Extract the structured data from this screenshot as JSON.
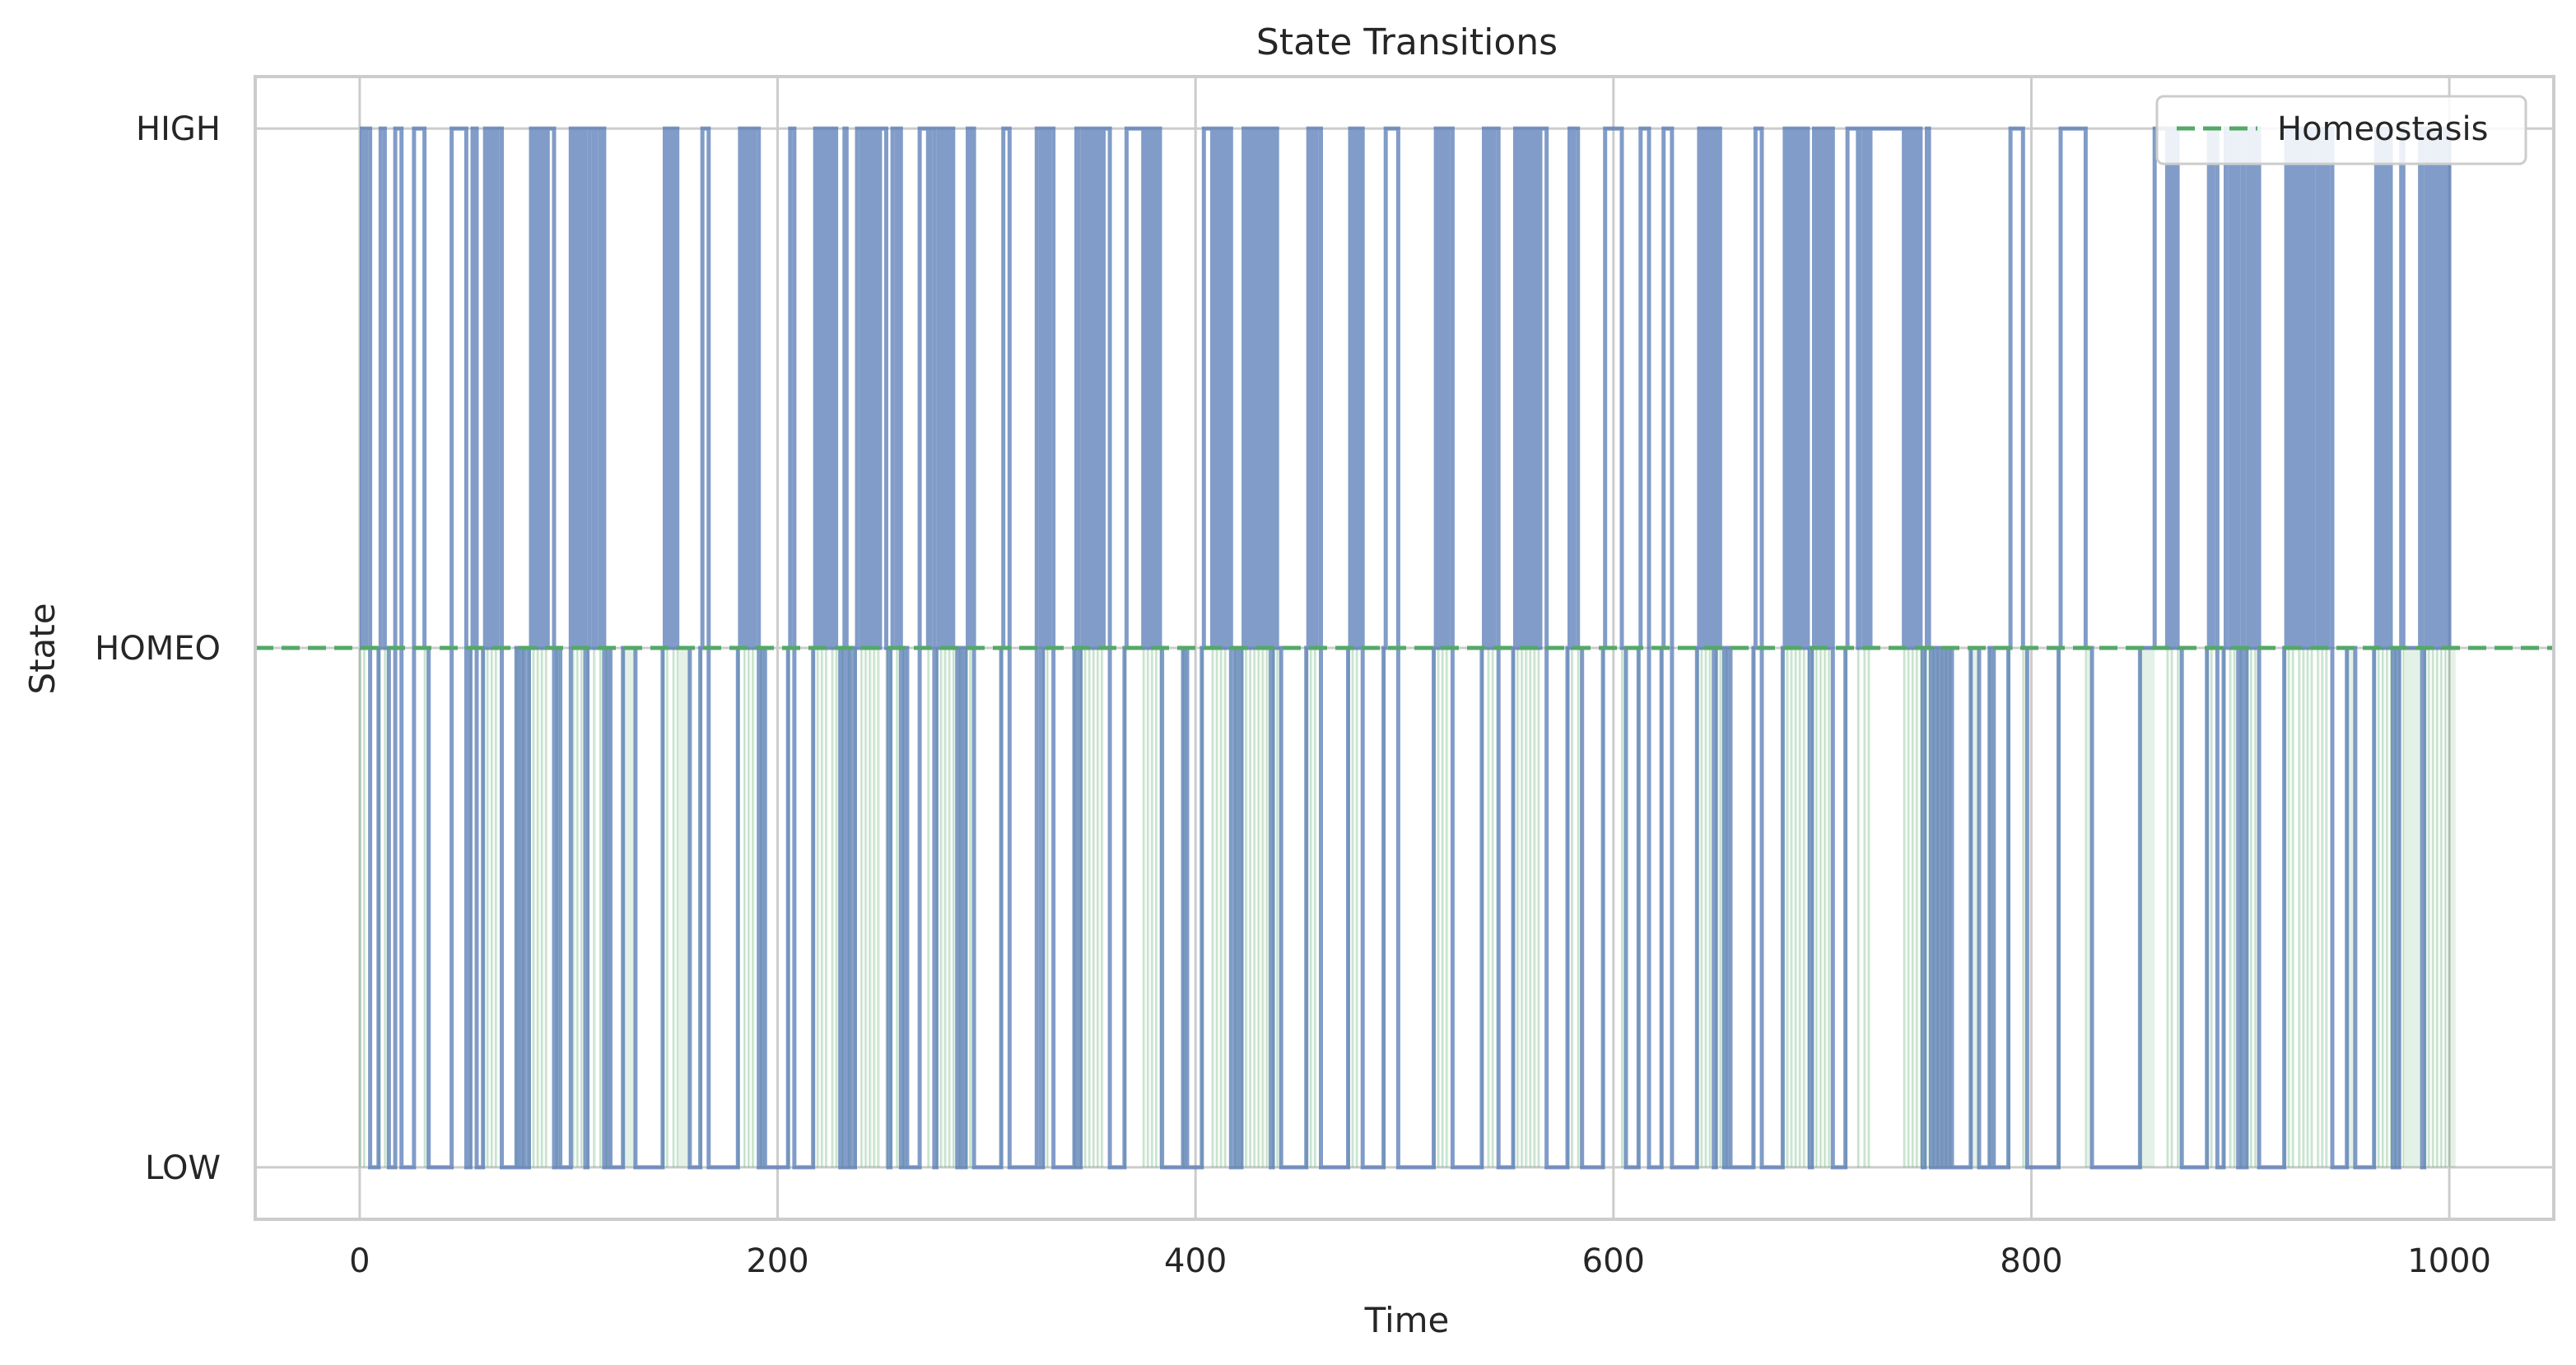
{
  "chart_data": {
    "type": "line",
    "title": "State Transitions",
    "xlabel": "Time",
    "ylabel": "State",
    "xlim": [
      -50,
      1050
    ],
    "ylim": [
      -0.1,
      2.1
    ],
    "x_ticks": [
      0,
      200,
      400,
      600,
      800,
      1000
    ],
    "y_ticks": [
      {
        "value": 0,
        "label": "LOW"
      },
      {
        "value": 1,
        "label": "HOMEO"
      },
      {
        "value": 2,
        "label": "HIGH"
      }
    ],
    "grid": true,
    "legend": {
      "placement": "top-right",
      "entries": [
        "Homeostasis"
      ]
    },
    "reference_line": {
      "name": "Homeostasis",
      "y": 1,
      "style": "dashed",
      "color": "#55a868"
    },
    "step_series": {
      "color": "#4c72b0",
      "states": [
        1,
        2,
        1,
        2,
        2,
        0,
        0,
        0,
        0,
        1,
        2,
        2,
        1,
        1,
        0,
        0,
        0,
        2,
        2,
        2,
        0,
        0,
        0,
        0,
        0,
        0,
        2,
        2,
        2,
        2,
        2,
        1,
        1,
        0,
        0,
        0,
        0,
        0,
        0,
        0,
        0,
        0,
        0,
        0,
        2,
        2,
        2,
        2,
        2,
        2,
        2,
        0,
        0,
        1,
        2,
        2,
        0,
        0,
        0,
        1,
        2,
        1,
        2,
        1,
        2,
        1,
        2,
        2,
        0,
        0,
        0,
        0,
        0,
        0,
        0,
        1,
        1,
        0,
        1,
        0,
        0,
        1,
        2,
        1,
        2,
        1,
        2,
        1,
        2,
        1,
        2,
        2,
        2,
        0,
        1,
        1,
        0,
        0,
        0,
        0,
        0,
        2,
        1,
        2,
        1,
        2,
        1,
        2,
        0,
        1,
        2,
        2,
        1,
        2,
        2,
        1,
        2,
        0,
        1,
        1,
        0,
        0,
        0,
        0,
        0,
        0,
        1,
        1,
        1,
        1,
        1,
        1,
        0,
        0,
        0,
        0,
        0,
        0,
        0,
        0,
        0,
        0,
        0,
        0,
        0,
        1,
        2,
        1,
        2,
        2,
        1,
        2,
        1,
        1,
        1,
        1,
        1,
        1,
        0,
        0,
        0,
        0,
        0,
        1,
        2,
        2,
        2,
        0,
        0,
        0,
        0,
        0,
        0,
        0,
        0,
        0,
        0,
        0,
        0,
        0,
        0,
        1,
        2,
        2,
        1,
        2,
        1,
        2,
        1,
        2,
        2,
        0,
        1,
        1,
        0,
        0,
        0,
        0,
        0,
        0,
        0,
        0,
        0,
        0,
        0,
        1,
        2,
        2,
        0,
        0,
        0,
        0,
        0,
        0,
        0,
        0,
        0,
        1,
        2,
        1,
        2,
        1,
        2,
        1,
        2,
        2,
        1,
        2,
        1,
        1,
        0,
        1,
        2,
        0,
        1,
        0,
        0,
        1,
        2,
        2,
        1,
        2,
        1,
        2,
        1,
        2,
        1,
        2,
        1,
        2,
        2,
        2,
        1,
        0,
        1,
        2,
        2,
        1,
        2,
        0,
        1,
        1,
        0,
        0,
        0,
        0,
        0,
        0,
        2,
        2,
        2,
        2,
        1,
        2,
        2,
        0,
        1,
        2,
        1,
        2,
        1,
        2,
        1,
        2,
        1,
        1,
        0,
        1,
        1,
        0,
        1,
        2,
        1,
        2,
        0,
        0,
        0,
        0,
        0,
        0,
        0,
        0,
        0,
        0,
        0,
        0,
        0,
        1,
        2,
        2,
        2,
        0,
        0,
        0,
        0,
        0,
        0,
        0,
        0,
        0,
        0,
        0,
        0,
        0,
        2,
        2,
        0,
        1,
        2,
        1,
        2,
        2,
        0,
        0,
        0,
        0,
        0,
        0,
        0,
        0,
        0,
        0,
        1,
        2,
        0,
        1,
        2,
        1,
        2,
        1,
        2,
        1,
        2,
        1,
        2,
        1,
        2,
        2,
        2,
        0,
        0,
        0,
        0,
        0,
        0,
        0,
        1,
        2,
        2,
        2,
        2,
        2,
        2,
        2,
        2,
        1,
        2,
        1,
        2,
        1,
        2,
        1,
        2,
        1,
        0,
        0,
        0,
        0,
        0,
        0,
        0,
        0,
        0,
        0,
        1,
        1,
        0,
        0,
        0,
        0,
        0,
        0,
        0,
        1,
        2,
        2,
        2,
        2,
        1,
        2,
        1,
        2,
        1,
        2,
        1,
        2,
        2,
        0,
        0,
        1,
        1,
        0,
        1,
        2,
        1,
        2,
        1,
        2,
        1,
        2,
        1,
        2,
        1,
        2,
        1,
        2,
        0,
        1,
        2,
        1,
        1,
        0,
        0,
        0,
        0,
        0,
        0,
        0,
        0,
        0,
        0,
        0,
        0,
        1,
        2,
        1,
        2,
        1,
        2,
        2,
        0,
        0,
        0,
        0,
        0,
        0,
        0,
        0,
        0,
        0,
        0,
        0,
        0,
        1,
        2,
        1,
        2,
        1,
        2,
        2,
        0,
        0,
        0,
        0,
        0,
        0,
        0,
        0,
        0,
        0,
        1,
        2,
        2,
        2,
        2,
        2,
        2,
        0,
        0,
        0,
        0,
        0,
        0,
        0,
        0,
        0,
        0,
        0,
        0,
        0,
        0,
        0,
        0,
        0,
        1,
        2,
        1,
        2,
        1,
        2,
        1,
        2,
        2,
        0,
        0,
        0,
        0,
        0,
        0,
        0,
        0,
        0,
        0,
        0,
        0,
        0,
        0,
        1,
        2,
        2,
        1,
        2,
        1,
        2,
        2,
        0,
        0,
        0,
        0,
        0,
        0,
        0,
        1,
        2,
        1,
        2,
        1,
        2,
        1,
        2,
        1,
        2,
        1,
        2,
        1,
        2,
        2,
        2,
        0,
        0,
        0,
        0,
        0,
        0,
        0,
        0,
        0,
        0,
        1,
        2,
        1,
        2,
        2,
        1,
        1,
        0,
        0,
        0,
        0,
        0,
        0,
        0,
        0,
        0,
        0,
        1,
        2,
        2,
        2,
        2,
        2,
        2,
        2,
        2,
        1,
        1,
        0,
        0,
        0,
        0,
        0,
        0,
        1,
        2,
        2,
        2,
        2,
        0,
        0,
        0,
        0,
        0,
        0,
        1,
        2,
        2,
        2,
        2,
        0,
        0,
        0,
        0,
        0,
        0,
        0,
        0,
        0,
        0,
        0,
        0,
        1,
        2,
        1,
        2,
        1,
        2,
        1,
        2,
        0,
        1,
        2,
        1,
        1,
        0,
        1,
        1,
        0,
        0,
        0,
        0,
        0,
        0,
        0,
        0,
        0,
        0,
        0,
        1,
        2,
        2,
        2,
        0,
        0,
        0,
        0,
        0,
        0,
        0,
        0,
        0,
        0,
        1,
        2,
        1,
        2,
        1,
        2,
        1,
        2,
        1,
        2,
        1,
        2,
        1,
        0,
        1,
        2,
        1,
        2,
        1,
        2,
        1,
        2,
        1,
        2,
        0,
        0,
        0,
        0,
        0,
        0,
        1,
        2,
        2,
        2,
        2,
        2,
        1,
        2,
        2,
        1,
        2,
        1,
        2,
        2,
        2,
        2,
        2,
        2,
        2,
        2,
        2,
        2,
        2,
        2,
        2,
        2,
        2,
        2,
        1,
        2,
        1,
        2,
        1,
        2,
        1,
        2,
        1,
        0,
        1,
        2,
        1,
        0,
        1,
        0,
        1,
        0,
        1,
        0,
        1,
        0,
        1,
        0,
        0,
        0,
        0,
        0,
        0,
        0,
        0,
        0,
        1,
        1,
        1,
        1,
        0,
        0,
        0,
        0,
        0,
        1,
        1,
        0,
        0,
        0,
        0,
        0,
        0,
        0,
        1,
        2,
        2,
        2,
        2,
        2,
        2,
        1,
        1,
        0,
        0,
        0,
        0,
        0,
        0,
        0,
        0,
        0,
        0,
        0,
        0,
        0,
        0,
        0,
        1,
        2,
        2,
        2,
        2,
        2,
        2,
        2,
        2,
        2,
        2,
        2,
        2,
        1,
        1,
        1,
        0,
        0,
        0,
        0,
        0,
        0,
        0,
        0,
        0,
        0,
        0,
        0,
        0,
        0,
        0,
        0,
        0,
        0,
        0,
        0,
        0,
        0,
        0,
        1,
        1,
        1,
        1,
        1,
        1,
        1,
        2,
        2,
        2,
        2,
        2,
        2,
        1,
        2,
        1,
        2,
        2,
        1,
        1,
        0,
        0,
        0,
        0,
        0,
        0,
        0,
        0,
        0,
        0,
        0,
        0,
        1,
        2,
        1,
        2,
        2,
        0,
        0,
        0,
        1,
        2,
        2,
        1,
        2,
        1,
        2,
        0,
        1,
        2,
        0,
        1,
        2,
        1,
        2,
        1,
        2,
        0,
        0,
        0,
        0,
        0,
        0,
        0,
        0,
        0,
        0,
        0,
        0,
        1,
        2,
        1,
        2,
        1,
        2,
        2,
        1,
        2,
        1,
        2,
        1,
        2,
        1,
        2,
        2,
        1,
        2,
        1,
        2,
        1,
        2,
        2,
        0,
        0,
        0,
        0,
        0,
        0,
        0,
        1,
        1,
        1,
        1,
        0,
        0,
        0,
        0,
        0,
        0,
        0,
        0,
        0,
        1,
        2,
        1,
        2,
        1,
        2,
        1,
        2,
        1,
        0,
        1,
        0,
        1,
        2,
        1,
        1,
        1,
        1,
        1,
        1,
        1,
        1,
        2,
        0,
        1,
        2,
        1,
        2,
        1,
        2,
        1,
        2,
        1,
        2,
        1,
        2,
        1,
        1,
        1
      ]
    }
  }
}
